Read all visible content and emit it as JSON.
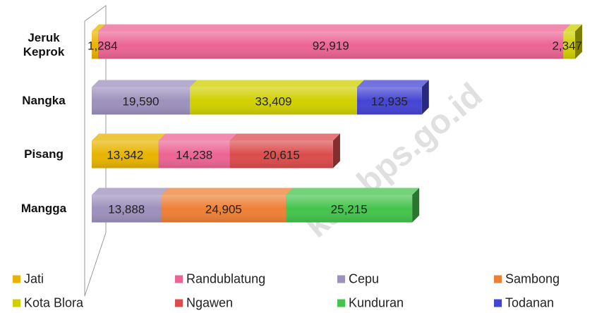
{
  "chart_data": {
    "type": "bar",
    "orientation": "horizontal",
    "stacked": true,
    "categories": [
      "Jeruk Keprok",
      "Nangka",
      "Pisang",
      "Mangga"
    ],
    "series": [
      {
        "name": "Jati",
        "color": "#e8b400",
        "values": [
          1284,
          null,
          13342,
          null
        ],
        "value_labels": [
          "1,284",
          null,
          "13,342",
          null
        ]
      },
      {
        "name": "Randublatung",
        "color": "#ec6494",
        "values": [
          92919,
          null,
          14238,
          null
        ],
        "value_labels": [
          "92,919",
          null,
          "14,238",
          null
        ]
      },
      {
        "name": "Cepu",
        "color": "#9d91bd",
        "values": [
          null,
          19590,
          null,
          13888
        ],
        "value_labels": [
          null,
          "19,590",
          null,
          "13,888"
        ]
      },
      {
        "name": "Sambong",
        "color": "#ee8036",
        "values": [
          null,
          null,
          null,
          24905
        ],
        "value_labels": [
          null,
          null,
          null,
          "24,905"
        ]
      },
      {
        "name": "Kota Blora",
        "color": "#d0d000",
        "values": [
          2347,
          33409,
          null,
          null
        ],
        "value_labels": [
          "2,347",
          "33,409",
          null,
          null
        ]
      },
      {
        "name": "Ngawen",
        "color": "#dc4c4c",
        "values": [
          null,
          null,
          20615,
          null
        ],
        "value_labels": [
          null,
          null,
          "20,615",
          null
        ]
      },
      {
        "name": "Kunduran",
        "color": "#44c44c",
        "values": [
          null,
          null,
          null,
          25215
        ],
        "value_labels": [
          null,
          null,
          null,
          "25,215"
        ]
      },
      {
        "name": "Todanan",
        "color": "#4444d4",
        "values": [
          null,
          12935,
          null,
          null
        ],
        "value_labels": [
          null,
          "12,935",
          null,
          null
        ]
      }
    ],
    "watermark": "kab.bps.go.id"
  }
}
